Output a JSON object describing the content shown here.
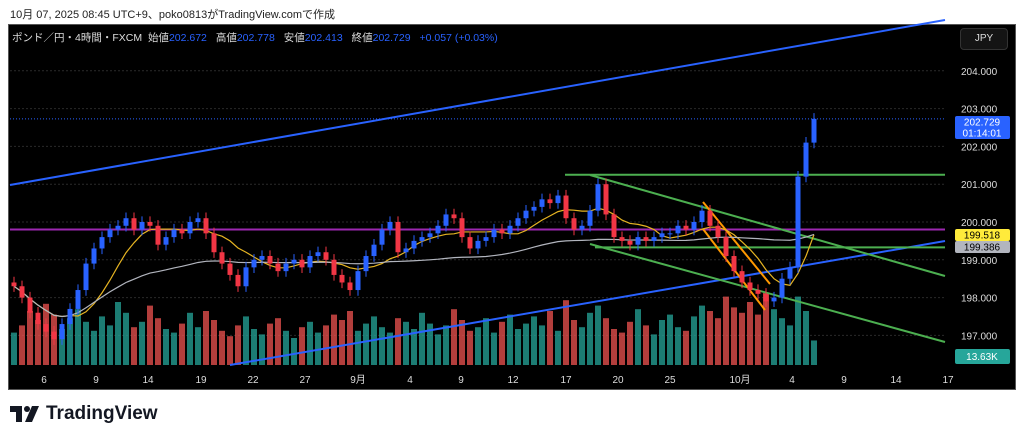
{
  "caption": "10月 07, 2025 08:45 UTC+9、poko0813がTradingView.comで作成",
  "legend": {
    "symbol": "ポンド／円・4時間・FXCM",
    "open_label": "始値",
    "open": "202.672",
    "high_label": "高値",
    "high": "202.778",
    "low_label": "安値",
    "low": "202.413",
    "close_label": "終値",
    "close": "202.729",
    "change": "+0.057 (+0.03%)"
  },
  "currency": "JPY",
  "brand": "TradingView",
  "colors": {
    "up": "#2962ff",
    "down": "#f23645",
    "vol_up": "#26a69a",
    "vol_down": "#ef5350",
    "ma_short": "#e6b422",
    "ma_long": "#b2b5be",
    "trend_blue": "#2962ff",
    "trend_green": "#4caf50",
    "purple": "#9c27b0",
    "orange": "#ff9800"
  },
  "chart_data": {
    "type": "candlestick",
    "yaxis_ticks": [
      "204.000",
      "203.000",
      "202.000",
      "201.000",
      "200.000",
      "199.000",
      "198.000",
      "197.000"
    ],
    "ylim": [
      196.4,
      205.1
    ],
    "xaxis_ticks": [
      "6",
      "9",
      "14",
      "19",
      "22",
      "27",
      "9月",
      "4",
      "9",
      "12",
      "17",
      "20",
      "25",
      "10月",
      "4",
      "9",
      "14",
      "17"
    ],
    "closes": [
      198.3,
      198.0,
      197.6,
      197.3,
      197.1,
      196.9,
      197.3,
      197.7,
      198.2,
      198.9,
      199.3,
      199.6,
      199.8,
      199.9,
      200.1,
      199.8,
      200.0,
      199.9,
      199.4,
      199.6,
      199.8,
      199.7,
      200.0,
      200.1,
      199.7,
      199.2,
      198.9,
      198.6,
      198.3,
      198.8,
      199.0,
      199.1,
      198.9,
      198.7,
      198.9,
      199.0,
      198.8,
      199.1,
      199.2,
      199.0,
      198.6,
      198.4,
      198.2,
      198.7,
      199.1,
      199.4,
      199.8,
      200.0,
      199.2,
      199.3,
      199.5,
      199.6,
      199.7,
      199.9,
      200.2,
      200.1,
      199.6,
      199.3,
      199.5,
      199.6,
      199.8,
      199.7,
      199.9,
      200.1,
      200.3,
      200.4,
      200.6,
      200.5,
      200.7,
      200.1,
      199.8,
      199.9,
      200.3,
      201.0,
      200.2,
      199.6,
      199.5,
      199.4,
      199.6,
      199.5,
      199.6,
      199.7,
      199.7,
      199.9,
      199.8,
      200.0,
      200.3,
      199.9,
      199.6,
      199.1,
      198.7,
      198.4,
      198.2,
      198.1,
      197.9,
      198.0,
      198.5,
      198.8,
      201.2,
      202.1,
      202.729
    ],
    "volumes_k": [
      18,
      22,
      30,
      25,
      34,
      28,
      20,
      26,
      31,
      24,
      19,
      27,
      22,
      35,
      29,
      21,
      24,
      33,
      26,
      20,
      18,
      23,
      29,
      21,
      30,
      25,
      19,
      16,
      22,
      27,
      20,
      17,
      23,
      26,
      19,
      15,
      21,
      24,
      18,
      22,
      28,
      25,
      30,
      19,
      23,
      27,
      21,
      18,
      26,
      24,
      20,
      29,
      23,
      17,
      22,
      31,
      25,
      19,
      21,
      26,
      18,
      24,
      28,
      20,
      23,
      27,
      22,
      30,
      19,
      36,
      25,
      21,
      29,
      33,
      26,
      20,
      18,
      24,
      31,
      22,
      17,
      25,
      28,
      21,
      19,
      27,
      33,
      30,
      26,
      38,
      32,
      29,
      35,
      28,
      40,
      31,
      26,
      22,
      38,
      30,
      13.63
    ],
    "last_price": "202.729",
    "countdown": "01:14:01",
    "ma_short_value": "199.518",
    "ma_long_value": "199.386",
    "volume_label": "13.63K"
  }
}
